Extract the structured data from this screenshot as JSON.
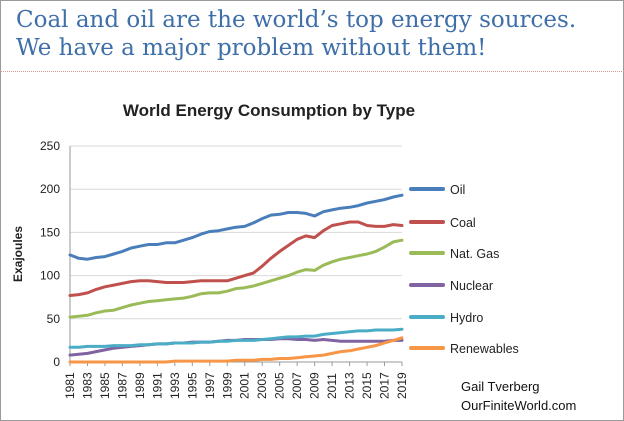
{
  "slide": {
    "headline_line1": "Coal and oil are the world’s top energy sources.",
    "headline_line2": "We have a major problem without them!",
    "credit_line1": "Gail Tverberg",
    "credit_line2": "OurFiniteWorld.com"
  },
  "chart_data": {
    "type": "line",
    "title": "World Energy Consumption by Type",
    "xlabel": "",
    "ylabel": "Exajoules",
    "ylim": [
      0,
      250
    ],
    "yticks": [
      0,
      50,
      100,
      150,
      200,
      250
    ],
    "x": [
      1981,
      1982,
      1983,
      1984,
      1985,
      1986,
      1987,
      1988,
      1989,
      1990,
      1991,
      1992,
      1993,
      1994,
      1995,
      1996,
      1997,
      1998,
      1999,
      2000,
      2001,
      2002,
      2003,
      2004,
      2005,
      2006,
      2007,
      2008,
      2009,
      2010,
      2011,
      2012,
      2013,
      2014,
      2015,
      2016,
      2017,
      2018,
      2019
    ],
    "xticks": [
      "1981",
      "1983",
      "1985",
      "1987",
      "1989",
      "1991",
      "1993",
      "1995",
      "1997",
      "1999",
      "2001",
      "2003",
      "2005",
      "2007",
      "2009",
      "2011",
      "2013",
      "2015",
      "2017",
      "2019"
    ],
    "legend_position": "right",
    "series": [
      {
        "name": "Oil",
        "color": "#4a7ebb",
        "values": [
          124,
          120,
          119,
          121,
          122,
          125,
          128,
          132,
          134,
          136,
          136,
          138,
          138,
          141,
          144,
          148,
          151,
          152,
          154,
          156,
          157,
          161,
          166,
          170,
          171,
          173,
          173,
          172,
          169,
          174,
          176,
          178,
          179,
          181,
          184,
          186,
          188,
          191,
          193
        ]
      },
      {
        "name": "Coal",
        "color": "#c0504d",
        "values": [
          77,
          78,
          80,
          84,
          87,
          89,
          91,
          93,
          94,
          94,
          93,
          92,
          92,
          92,
          93,
          94,
          94,
          94,
          94,
          97,
          100,
          103,
          111,
          120,
          128,
          135,
          142,
          146,
          144,
          152,
          158,
          160,
          162,
          162,
          158,
          157,
          157,
          159,
          158
        ]
      },
      {
        "name": "Nat. Gas",
        "color": "#9bbb59",
        "values": [
          52,
          53,
          54,
          57,
          59,
          60,
          63,
          66,
          68,
          70,
          71,
          72,
          73,
          74,
          76,
          79,
          80,
          80,
          82,
          85,
          86,
          88,
          91,
          94,
          97,
          100,
          104,
          107,
          106,
          112,
          116,
          119,
          121,
          123,
          125,
          128,
          133,
          139,
          141
        ]
      },
      {
        "name": "Nuclear",
        "color": "#8064a2",
        "values": [
          8,
          9,
          10,
          12,
          14,
          16,
          17,
          18,
          19,
          20,
          21,
          21,
          22,
          22,
          23,
          23,
          23,
          24,
          25,
          25,
          26,
          26,
          26,
          26,
          27,
          27,
          26,
          26,
          25,
          26,
          25,
          24,
          24,
          24,
          24,
          24,
          24,
          25,
          25
        ]
      },
      {
        "name": "Hydro",
        "color": "#4bacc6",
        "values": [
          17,
          17,
          18,
          18,
          18,
          19,
          19,
          19,
          20,
          20,
          21,
          21,
          22,
          22,
          22,
          23,
          23,
          24,
          24,
          25,
          25,
          25,
          26,
          27,
          28,
          29,
          29,
          30,
          30,
          32,
          33,
          34,
          35,
          36,
          36,
          37,
          37,
          37,
          38
        ]
      },
      {
        "name": "Renewables",
        "color": "#f79646",
        "values": [
          0,
          0,
          0,
          0,
          0,
          0,
          0,
          0,
          0,
          0,
          0,
          0,
          1,
          1,
          1,
          1,
          1,
          1,
          1,
          2,
          2,
          2,
          3,
          3,
          4,
          4,
          5,
          6,
          7,
          8,
          10,
          12,
          13,
          15,
          17,
          19,
          22,
          25,
          28
        ]
      }
    ]
  }
}
